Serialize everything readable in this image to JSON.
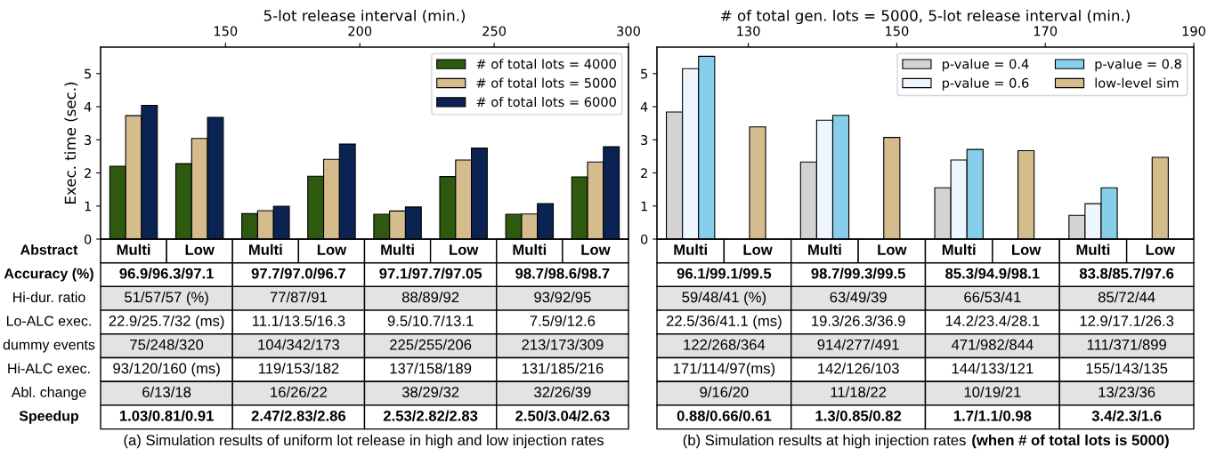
{
  "chart_data": [
    {
      "type": "bar",
      "x2label": "5-lot release interval (min.)",
      "ylabel": "Exec. time (sec.)",
      "xlabel": "Abstract",
      "subtitle": "(a) Simulation results of uniform lot release in high and low injection rates",
      "categories": [
        "Multi",
        "Low",
        "Multi",
        "Low",
        "Multi",
        "Low",
        "Multi",
        "Low"
      ],
      "series": [
        {
          "name": "# of total lots = 4000",
          "color": "#2e5a10",
          "values": [
            2.2,
            2.28,
            0.77,
            1.9,
            0.75,
            1.89,
            0.75,
            1.88
          ]
        },
        {
          "name": "# of total lots = 5000",
          "color": "#d4bc8c",
          "values": [
            3.73,
            3.04,
            0.86,
            2.41,
            0.85,
            2.39,
            0.76,
            2.33
          ]
        },
        {
          "name": "# of total lots = 6000",
          "color": "#0a2352",
          "values": [
            4.04,
            3.68,
            0.99,
            2.87,
            0.97,
            2.75,
            1.07,
            2.79
          ]
        }
      ],
      "ylim": [
        0,
        5.8
      ],
      "yticks": [
        0,
        1,
        2,
        3,
        4,
        5
      ],
      "x2lim": [
        103.5,
        300
      ],
      "x2ticks": [
        150,
        200,
        250,
        300
      ],
      "legend": "top right",
      "grid": false,
      "annotations": [
        "Accuracy (%)",
        "96.9/96.3/97.1",
        "97.7/97.0/96.7",
        "97.1/97.7/97.05",
        "98.7/98.6/98.7",
        "Hi-dur. ratio",
        "51/57/57 (%)",
        "77/87/91",
        "88/89/92",
        "93/92/95",
        "Lo-ALC exec.",
        "22.9/25.7/32 (ms)",
        "11.1/13.5/16.3",
        "9.5/10.7/13.1",
        "7.5/9/12.6",
        "dummy events",
        "75/248/320",
        "104/342/173",
        "225/255/206",
        "213/173/309",
        "Hi-ALC exec.",
        "93/120/160 (ms)",
        "119/153/182",
        "137/158/189",
        "131/185/216",
        "Abl. change",
        "6/13/18",
        "16/26/22",
        "38/29/32",
        "32/26/39",
        "Speedup",
        "1.03/0.81/0.91",
        "2.47/2.83/2.86",
        "2.53/2.82/2.83",
        "2.50/3.04/2.63"
      ]
    },
    {
      "type": "bar",
      "x2label": "# of total gen. lots = 5000, 5-lot release interval (min.)",
      "subtitle": "(b) Simulation results at high injection rates",
      "categories": [
        "Multi",
        "Low",
        "Multi",
        "Low",
        "Multi",
        "Low",
        "Multi",
        "Low"
      ],
      "series": [
        {
          "name": "p-value = 0.4",
          "color": "#d3d3d3",
          "values": [
            3.84,
            null,
            2.33,
            null,
            1.55,
            null,
            0.72,
            null
          ]
        },
        {
          "name": "p-value = 0.6",
          "color": "#eef5fc",
          "values": [
            5.15,
            null,
            3.59,
            null,
            2.39,
            null,
            1.07,
            null
          ]
        },
        {
          "name": "p-value = 0.8",
          "color": "#87ceeb",
          "values": [
            5.52,
            null,
            3.74,
            null,
            2.71,
            null,
            1.55,
            null
          ]
        },
        {
          "name": "low-level sim",
          "color": "#d4bc8c",
          "values": [
            null,
            3.39,
            null,
            3.07,
            null,
            2.67,
            null,
            2.47
          ]
        }
      ],
      "ylim": [
        0,
        5.8
      ],
      "yticks": [
        0,
        1,
        2,
        3,
        4,
        5
      ],
      "x2lim": [
        117.7,
        190
      ],
      "x2ticks": [
        130,
        150,
        170,
        190
      ],
      "legend": "top right",
      "grid": false,
      "annotations": [
        "96.1/99.1/99.5",
        "98.7/99.3/99.5",
        "85.3/94.9/98.1",
        "83.8/85.7/97.6",
        "59/48/41 (%)",
        "63/49/39",
        "66/53/41",
        "85/72/44",
        "22.5/36/41.1 (ms)",
        "19.3/26.3/36.9",
        "14.2/23.4/28.1",
        "12.9/17.1/26.3",
        "122/268/364",
        "914/277/491",
        "471/982/844",
        "111/371/899",
        "171/114/97(ms)",
        "142/126/103",
        "144/133/121",
        "155/143/135",
        "9/16/20",
        "11/18/22",
        "10/19/21",
        "13/23/36",
        "0.88/0.66/0.61",
        "1.3/0.85/0.82",
        "1.7/1.1/0.98",
        "3.4/2.3/1.6",
        "(when # of total lots is 5000)"
      ]
    }
  ]
}
